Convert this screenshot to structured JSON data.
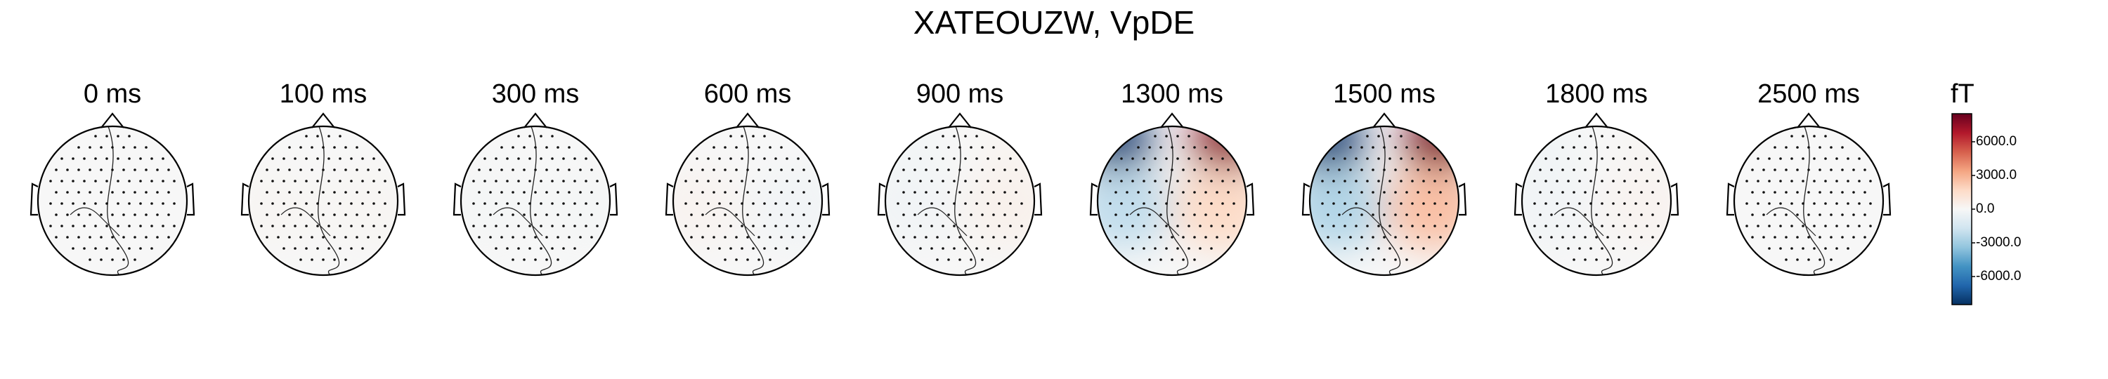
{
  "chart_data": {
    "type": "heatmap",
    "title": "XATEOUZW, VpDE",
    "times": [
      "0 ms",
      "100 ms",
      "300 ms",
      "600 ms",
      "900 ms",
      "1300 ms",
      "1500 ms",
      "1800 ms",
      "2500 ms"
    ],
    "series": [
      {
        "label": "0 ms",
        "intensity": 0.02,
        "left_front": -0.05,
        "right_front": 0.05,
        "left": 0.0,
        "right": 0.0
      },
      {
        "label": "100 ms",
        "intensity": 0.03,
        "left_front": 0.0,
        "right_front": 0.0,
        "left": 0.05,
        "right": 0.05
      },
      {
        "label": "300 ms",
        "intensity": 0.03,
        "left_front": 0.0,
        "right_front": 0.0,
        "left": -0.05,
        "right": -0.05
      },
      {
        "label": "600 ms",
        "intensity": 0.05,
        "left_front": 0.0,
        "right_front": 0.0,
        "left": 0.1,
        "right": -0.1
      },
      {
        "label": "900 ms",
        "intensity": 0.12,
        "left_front": -0.2,
        "right_front": 0.2,
        "left": -0.1,
        "right": 0.15
      },
      {
        "label": "1300 ms",
        "intensity": 1.0,
        "left_front": -0.95,
        "right_front": 0.9,
        "left": -0.25,
        "right": 0.2
      },
      {
        "label": "1500 ms",
        "intensity": 1.0,
        "left_front": -0.95,
        "right_front": 0.95,
        "left": -0.3,
        "right": 0.3
      },
      {
        "label": "1800 ms",
        "intensity": 0.15,
        "left_front": -0.25,
        "right_front": 0.1,
        "left": -0.1,
        "right": 0.1
      },
      {
        "label": "2500 ms",
        "intensity": 0.02,
        "left_front": 0.0,
        "right_front": 0.0,
        "left": 0.0,
        "right": 0.0
      }
    ],
    "colorbar": {
      "unit": "fT",
      "range": [
        -8500,
        8500
      ],
      "ticks": [
        6000,
        3000,
        0,
        -3000,
        -6000
      ],
      "tick_labels": [
        "6000.0",
        "3000.0",
        "0.0",
        "-3000.0",
        "-6000.0"
      ],
      "colormap": [
        "#053061",
        "#2166ac",
        "#4393c3",
        "#92c5de",
        "#d1e5f0",
        "#f7f7f7",
        "#fddbc7",
        "#f4a582",
        "#d6604d",
        "#b2182b",
        "#67001f"
      ]
    },
    "grid": false
  }
}
